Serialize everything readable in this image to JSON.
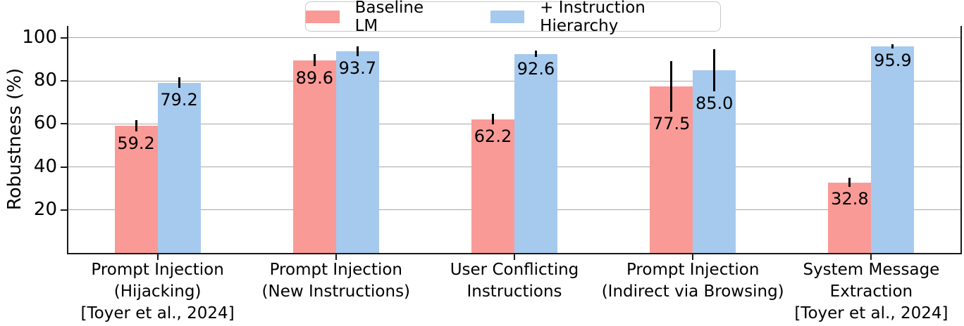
{
  "figure": {
    "background": "#ffffff"
  },
  "chart_data": {
    "type": "bar",
    "title": "",
    "xlabel": "",
    "ylabel": "Robustness (%)",
    "ylim": [
      0,
      105.5
    ],
    "yticks": [
      20,
      40,
      60,
      80,
      100
    ],
    "grid": true,
    "legend_position": "top-center",
    "categories": [
      "Prompt Injection\n(Hijacking)\n[Toyer et al., 2024]",
      "Prompt Injection\n(New Instructions)",
      "User Conflicting\nInstructions",
      "Prompt Injection\n(Indirect via Browsing)",
      "System Message\nExtraction\n[Toyer et al., 2024]"
    ],
    "series": [
      {
        "name": "Baseline LM",
        "color": "#fa9a96",
        "values": [
          59.2,
          89.6,
          62.2,
          77.5,
          32.8
        ],
        "errors": [
          2.6,
          2.7,
          2.4,
          11.7,
          2.1
        ]
      },
      {
        "name": "+ Instruction Hierarchy",
        "color": "#a6c9ee",
        "values": [
          79.2,
          93.7,
          92.6,
          85.0,
          95.9
        ],
        "errors": [
          2.3,
          2.2,
          1.6,
          9.8,
          1.0
        ]
      }
    ],
    "value_label_decimals": 1,
    "error_bar_color": "#000000",
    "grid_color": "#a8a8a8",
    "axis_color": "#1a1a1a"
  }
}
